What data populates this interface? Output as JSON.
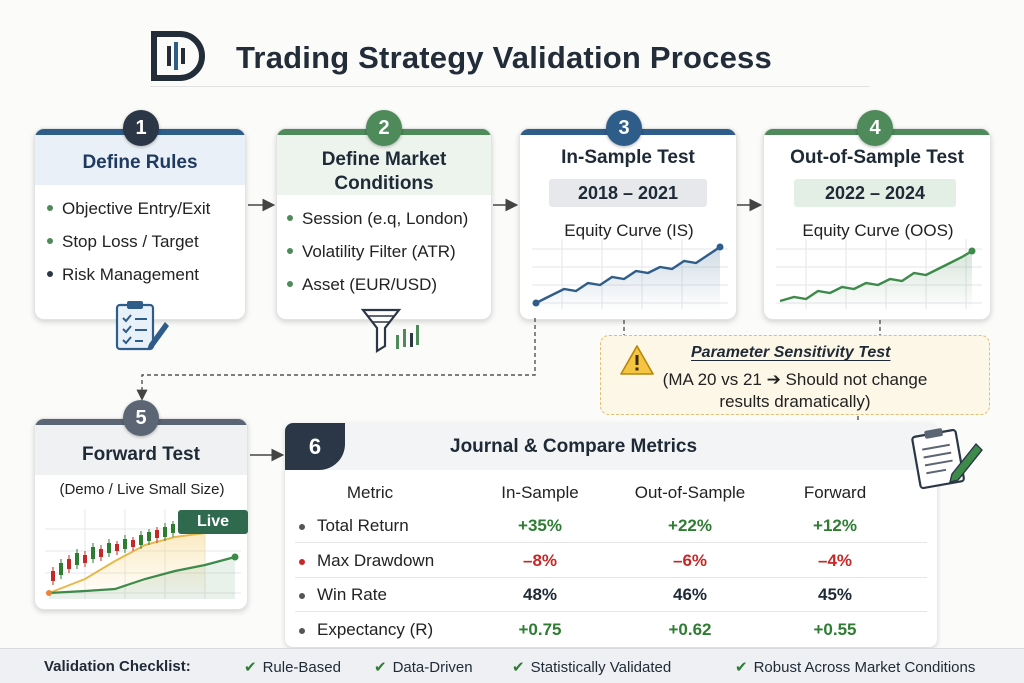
{
  "header": {
    "title": "Trading Strategy Validation Process"
  },
  "steps": [
    {
      "num": "1",
      "title": "Define Rules",
      "bullets": [
        "Objective Entry/Exit",
        "Stop Loss / Target",
        "Risk Management"
      ],
      "icon": "clipboard-checklist-icon"
    },
    {
      "num": "2",
      "title_line1": "Define Market",
      "title_line2": "Conditions",
      "bullets": [
        "Session (e.q, London)",
        "Volatility Filter (ATR)",
        "Asset (EUR/USD)"
      ],
      "icon": "filter-funnel-icon"
    },
    {
      "num": "3",
      "title": "In-Sample Test",
      "period": "2018 – 2021",
      "chart_label": "Equity Curve (IS)"
    },
    {
      "num": "4",
      "title": "Out-of-Sample Test",
      "period": "2022 – 2024",
      "chart_label": "Equity Curve (OOS)"
    },
    {
      "num": "5",
      "title": "Forward Test",
      "subtitle": "(Demo / Live Small Size)",
      "badge": "Live"
    }
  ],
  "sensitivity": {
    "title": "Parameter Sensitivity Test",
    "line1": "(MA 20 vs 21 ➔ Should not change",
    "line2": "results dramatically)",
    "icon": "warning-icon"
  },
  "journal": {
    "num": "6",
    "title": "Journal & Compare Metrics",
    "columns": [
      "Metric",
      "In-Sample",
      "Out-of-Sample",
      "Forward"
    ],
    "rows": [
      {
        "metric": "Total Return",
        "is": "+35%",
        "oos": "+22%",
        "fwd": "+12%",
        "color": "#2e7d32",
        "dot": "#555555"
      },
      {
        "metric": "Max Drawdown",
        "is": "–8%",
        "oos": "–6%",
        "fwd": "–4%",
        "color": "#c62828",
        "dot": "#c62828"
      },
      {
        "metric": "Win Rate",
        "is": "48%",
        "oos": "46%",
        "fwd": "45%",
        "color": "#1f2a37",
        "dot": "#555555"
      },
      {
        "metric": "Expectancy (R)",
        "is": "+0.75",
        "oos": "+0.62",
        "fwd": "+0.55",
        "color": "#2e7d32",
        "dot": "#555555"
      }
    ]
  },
  "footer": {
    "label": "Validation Checklist:",
    "items": [
      "Rule-Based",
      "Data-Driven",
      "Statistically Validated",
      "Robust Across Market Conditions"
    ]
  },
  "colors": {
    "navy": "#2b3646",
    "green": "#4e8a5a",
    "blue": "#2f5d8a",
    "slate": "#5b6573",
    "red": "#c62828",
    "gold": "#e2bf72"
  }
}
